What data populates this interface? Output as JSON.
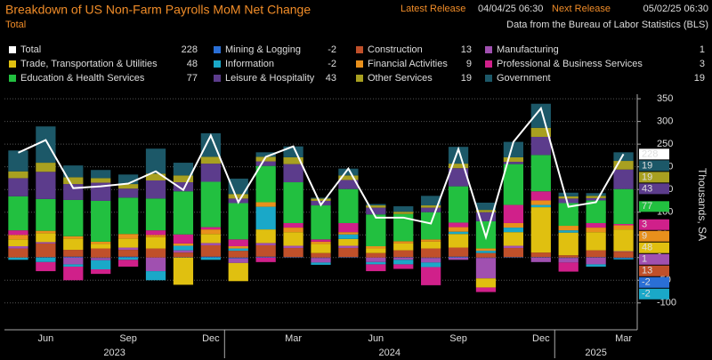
{
  "header": {
    "title": "Breakdown of US Non-Farm Payrolls MoM Net Change",
    "subtitle": "Total",
    "latest_label": "Latest Release",
    "latest": "04/04/25 06:30",
    "next_label": "Next Release",
    "next": "05/02/25 06:30",
    "source": "Data from the Bureau of Labor Statistics (BLS)"
  },
  "chart_data": {
    "type": "stacked-bar-line",
    "y_label": "Thousands, SA",
    "categories": [
      null,
      "Jun",
      null,
      null,
      "Sep",
      null,
      null,
      "Dec",
      null,
      null,
      "Mar",
      null,
      null,
      "Jun",
      null,
      null,
      "Sep",
      null,
      null,
      "Dec",
      null,
      null,
      "Mar"
    ],
    "x_groups": [
      {
        "label": "2023",
        "start": 0,
        "end": 7
      },
      {
        "label": "2024",
        "start": 8,
        "end": 19
      },
      {
        "label": "2025",
        "start": 20,
        "end": 22
      }
    ],
    "ylim": [
      -120,
      360
    ],
    "yticks": [
      -100,
      -50,
      0,
      50,
      100,
      150,
      200,
      250,
      300,
      350
    ],
    "series": [
      {
        "name": "Total",
        "color": "#ffffff",
        "kind": "line",
        "values": [
          231,
          259,
          153,
          157,
          163,
          190,
          149,
          269,
          122,
          222,
          245,
          116,
          196,
          88,
          88,
          75,
          239,
          45,
          255,
          329,
          112,
          122,
          228
        ]
      },
      {
        "name": "Mining & Logging",
        "color": "#2a6fd6",
        "values": [
          0,
          1,
          2,
          -1,
          2,
          0,
          1,
          2,
          -2,
          2,
          1,
          -1,
          1,
          0,
          1,
          -1,
          2,
          -1,
          1,
          1,
          -1,
          1,
          -2
        ]
      },
      {
        "name": "Construction",
        "color": "#c0502a",
        "values": [
          20,
          30,
          15,
          20,
          15,
          20,
          10,
          25,
          15,
          25,
          20,
          10,
          20,
          10,
          15,
          20,
          20,
          10,
          20,
          10,
          5,
          15,
          13
        ]
      },
      {
        "name": "Manufacturing",
        "color": "#a050b0",
        "values": [
          5,
          3,
          -15,
          -5,
          5,
          -30,
          5,
          5,
          -10,
          5,
          5,
          -10,
          5,
          -10,
          -5,
          -10,
          -5,
          -45,
          5,
          -10,
          -10,
          -15,
          1
        ]
      },
      {
        "name": "Trade, Transportation & Utilities",
        "color": "#e0c010",
        "values": [
          15,
          20,
          25,
          10,
          20,
          25,
          -60,
          20,
          -40,
          30,
          30,
          20,
          15,
          10,
          15,
          15,
          30,
          -20,
          30,
          100,
          50,
          40,
          48
        ]
      },
      {
        "name": "Information",
        "color": "#1aa8c8",
        "values": [
          -5,
          -10,
          -5,
          -20,
          -5,
          -20,
          10,
          -5,
          5,
          50,
          0,
          -5,
          10,
          -5,
          -10,
          -10,
          5,
          5,
          10,
          5,
          5,
          -5,
          -2
        ]
      },
      {
        "name": "Financial Activities",
        "color": "#e8901c",
        "values": [
          10,
          5,
          5,
          5,
          10,
          5,
          5,
          10,
          5,
          10,
          10,
          5,
          5,
          5,
          5,
          5,
          10,
          5,
          10,
          10,
          10,
          10,
          9
        ]
      },
      {
        "name": "Professional & Business Services",
        "color": "#d0208a",
        "values": [
          10,
          -20,
          -30,
          -10,
          -15,
          10,
          20,
          5,
          15,
          -10,
          10,
          5,
          20,
          -15,
          -10,
          -40,
          10,
          -10,
          40,
          20,
          -20,
          10,
          3
        ]
      },
      {
        "name": "Education & Health Services",
        "color": "#22c040",
        "values": [
          75,
          70,
          80,
          90,
          80,
          70,
          95,
          100,
          80,
          80,
          90,
          75,
          75,
          70,
          60,
          60,
          80,
          60,
          90,
          80,
          50,
          50,
          77
        ]
      },
      {
        "name": "Leisure & Hospitality",
        "color": "#5c3c8c",
        "values": [
          40,
          60,
          35,
          40,
          20,
          40,
          20,
          40,
          10,
          10,
          40,
          10,
          20,
          15,
          0,
          10,
          40,
          20,
          5,
          40,
          10,
          5,
          43
        ]
      },
      {
        "name": "Other Services",
        "color": "#a8a020",
        "values": [
          15,
          20,
          15,
          10,
          10,
          15,
          15,
          15,
          10,
          10,
          15,
          5,
          10,
          5,
          5,
          5,
          10,
          5,
          10,
          20,
          5,
          5,
          19
        ]
      },
      {
        "name": "Government",
        "color": "#1c5868",
        "values": [
          46,
          80,
          26,
          18,
          21,
          55,
          28,
          52,
          34,
          10,
          24,
          2,
          15,
          3,
          12,
          21,
          37,
          16,
          34,
          53,
          8,
          6,
          19
        ]
      }
    ]
  }
}
